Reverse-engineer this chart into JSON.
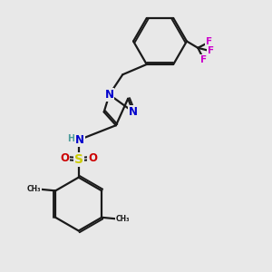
{
  "background_color": "#e8e8e8",
  "bond_color": "#1a1a1a",
  "bond_width": 1.6,
  "colors": {
    "N": "#0000cc",
    "O": "#cc0000",
    "S": "#cccc00",
    "F": "#cc00cc",
    "H": "#4a9a9a",
    "C": "#1a1a1a"
  },
  "fs": 8.5,
  "fs_small": 7.0
}
